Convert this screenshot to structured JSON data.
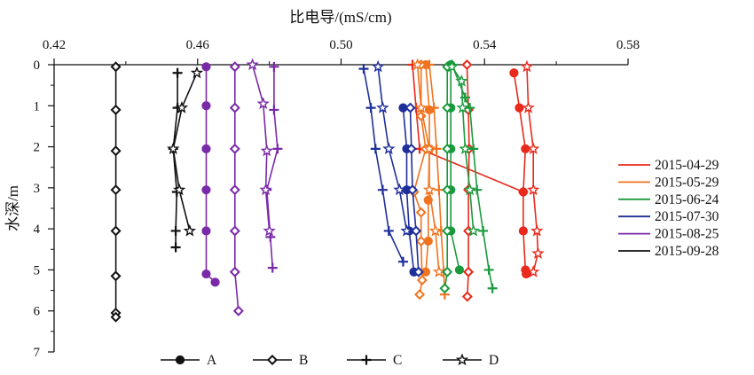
{
  "chart_data": {
    "type": "scatter",
    "xlabel": "比电导/(mS/cm)",
    "ylabel": "水深/m",
    "xlim": [
      0.42,
      0.58
    ],
    "ylim": [
      0,
      7
    ],
    "x_axis_position": "top",
    "y_axis_inverted": true,
    "x_ticks": [
      "0.42",
      "0.46",
      "0.50",
      "0.54",
      "0.58"
    ],
    "y_ticks": [
      "0",
      "1",
      "2",
      "3",
      "4",
      "5",
      "6",
      "7"
    ],
    "grid": false,
    "date_legend": {
      "placement": "right",
      "entries": [
        {
          "name": "2015-04-29",
          "color": "#e8291c"
        },
        {
          "name": "2015-05-29",
          "color": "#f0741f"
        },
        {
          "name": "2015-06-24",
          "color": "#1a9a3c"
        },
        {
          "name": "2015-07-30",
          "color": "#1f2f9a"
        },
        {
          "name": "2015-08-25",
          "color": "#7a2aa8"
        },
        {
          "name": "2015-09-28",
          "color": "#111111"
        }
      ]
    },
    "marker_legend": {
      "placement": "bottom",
      "entries": [
        {
          "name": "A",
          "marker": "circle"
        },
        {
          "name": "B",
          "marker": "diamond"
        },
        {
          "name": "C",
          "marker": "plus"
        },
        {
          "name": "D",
          "marker": "star"
        }
      ]
    },
    "series": [
      {
        "date": "2015-04-29",
        "site": "A",
        "color": "#e8291c",
        "marker": "circle",
        "points": [
          [
            0.5482,
            0.2
          ],
          [
            0.5497,
            1.05
          ],
          [
            0.5514,
            2.05
          ],
          [
            0.5508,
            3.1
          ],
          [
            0.5508,
            4.05
          ],
          [
            0.5514,
            5.0
          ],
          [
            0.5516,
            5.1
          ]
        ]
      },
      {
        "date": "2015-04-29",
        "site": "B",
        "color": "#e8291c",
        "marker": "diamond",
        "points": [
          [
            0.5351,
            0.0
          ],
          [
            0.5355,
            1.1
          ],
          [
            0.5357,
            2.05
          ],
          [
            0.5355,
            3.05
          ],
          [
            0.5355,
            4.05
          ],
          [
            0.5355,
            5.05
          ],
          [
            0.5352,
            5.65
          ]
        ]
      },
      {
        "date": "2015-04-29",
        "site": "C",
        "color": "#e8291c",
        "marker": "plus",
        "points": [
          [
            0.5199,
            0.0
          ],
          [
            0.5209,
            1.05
          ],
          [
            0.5219,
            2.05
          ],
          [
            0.5508,
            3.1
          ]
        ]
      },
      {
        "date": "2015-04-29",
        "site": "D",
        "color": "#e8291c",
        "marker": "star",
        "points": [
          [
            0.5518,
            0.05
          ],
          [
            0.5522,
            1.05
          ],
          [
            0.5536,
            2.05
          ],
          [
            0.5536,
            3.05
          ],
          [
            0.5546,
            4.05
          ],
          [
            0.5549,
            4.6
          ],
          [
            0.5536,
            5.05
          ]
        ]
      },
      {
        "date": "2015-05-29",
        "site": "A",
        "color": "#f0741f",
        "marker": "circle",
        "points": [
          [
            0.5236,
            0.0
          ],
          [
            0.5246,
            1.1
          ],
          [
            0.5246,
            2.05
          ],
          [
            0.5243,
            3.3
          ],
          [
            0.5243,
            4.3
          ],
          [
            0.5236,
            5.05
          ]
        ]
      },
      {
        "date": "2015-05-29",
        "site": "B",
        "color": "#f0741f",
        "marker": "diamond",
        "points": [
          [
            0.5223,
            0.0
          ],
          [
            0.5223,
            1.25
          ],
          [
            0.5236,
            2.05
          ],
          [
            0.5203,
            3.1
          ],
          [
            0.5223,
            3.6
          ],
          [
            0.5223,
            4.3
          ],
          [
            0.5226,
            5.25
          ],
          [
            0.5219,
            5.6
          ]
        ]
      },
      {
        "date": "2015-05-29",
        "site": "C",
        "color": "#f0741f",
        "marker": "plus",
        "points": [
          [
            0.5246,
            0.0
          ],
          [
            0.5259,
            1.05
          ],
          [
            0.5266,
            2.05
          ],
          [
            0.5273,
            3.05
          ],
          [
            0.5279,
            4.05
          ],
          [
            0.5286,
            5.05
          ],
          [
            0.5289,
            5.6
          ]
        ]
      },
      {
        "date": "2015-05-29",
        "site": "D",
        "color": "#f0741f",
        "marker": "star",
        "points": [
          [
            0.5213,
            0.0
          ],
          [
            0.5223,
            1.05
          ],
          [
            0.5246,
            2.05
          ],
          [
            0.5246,
            3.05
          ],
          [
            0.5263,
            4.05
          ],
          [
            0.5273,
            5.05
          ]
        ]
      },
      {
        "date": "2015-06-24",
        "site": "A",
        "color": "#1a9a3c",
        "marker": "circle",
        "points": [
          [
            0.5306,
            0.0
          ],
          [
            0.5306,
            1.05
          ],
          [
            0.5306,
            2.05
          ],
          [
            0.5306,
            3.05
          ],
          [
            0.5306,
            4.05
          ],
          [
            0.533,
            5.0
          ]
        ]
      },
      {
        "date": "2015-06-24",
        "site": "B",
        "color": "#1a9a3c",
        "marker": "diamond",
        "points": [
          [
            0.5296,
            0.05
          ],
          [
            0.5296,
            1.05
          ],
          [
            0.5296,
            2.05
          ],
          [
            0.5296,
            3.05
          ],
          [
            0.5296,
            4.05
          ],
          [
            0.5296,
            5.05
          ],
          [
            0.5289,
            5.45
          ]
        ]
      },
      {
        "date": "2015-06-24",
        "site": "C",
        "color": "#1a9a3c",
        "marker": "plus",
        "points": [
          [
            0.5309,
            0.0
          ],
          [
            0.5346,
            0.8
          ],
          [
            0.5359,
            1.05
          ],
          [
            0.5369,
            2.05
          ],
          [
            0.5379,
            3.05
          ],
          [
            0.5396,
            4.05
          ],
          [
            0.5412,
            5.0
          ],
          [
            0.5422,
            5.45
          ]
        ]
      },
      {
        "date": "2015-06-24",
        "site": "D",
        "color": "#1a9a3c",
        "marker": "star",
        "points": [
          [
            0.5309,
            0.05
          ],
          [
            0.5336,
            0.4
          ],
          [
            0.5339,
            1.05
          ],
          [
            0.5346,
            2.05
          ],
          [
            0.5359,
            3.05
          ],
          [
            0.5369,
            4.05
          ]
        ]
      },
      {
        "date": "2015-07-30",
        "site": "A",
        "color": "#1f2f9a",
        "marker": "circle",
        "points": [
          [
            0.5173,
            1.05
          ],
          [
            0.5183,
            2.05
          ],
          [
            0.5183,
            3.05
          ],
          [
            0.519,
            4.05
          ],
          [
            0.5203,
            5.05
          ]
        ]
      },
      {
        "date": "2015-07-30",
        "site": "B",
        "color": "#1f2f9a",
        "marker": "diamond",
        "points": [
          [
            0.5193,
            1.05
          ],
          [
            0.5196,
            2.05
          ],
          [
            0.5199,
            3.05
          ],
          [
            0.5209,
            4.05
          ],
          [
            0.5216,
            5.05
          ]
        ]
      },
      {
        "date": "2015-07-30",
        "site": "C",
        "color": "#1f2f9a",
        "marker": "plus",
        "points": [
          [
            0.5063,
            0.1
          ],
          [
            0.5083,
            1.05
          ],
          [
            0.5096,
            2.05
          ],
          [
            0.5116,
            3.05
          ],
          [
            0.5133,
            4.05
          ],
          [
            0.5173,
            4.8
          ]
        ]
      },
      {
        "date": "2015-07-30",
        "site": "D",
        "color": "#1f2f9a",
        "marker": "star",
        "points": [
          [
            0.5103,
            0.05
          ],
          [
            0.5116,
            1.05
          ],
          [
            0.5133,
            2.05
          ],
          [
            0.5163,
            3.05
          ],
          [
            0.5183,
            4.05
          ]
        ]
      },
      {
        "date": "2015-08-25",
        "site": "A",
        "color": "#7a2aa8",
        "marker": "circle",
        "points": [
          [
            0.4624,
            0.05
          ],
          [
            0.4624,
            1.0
          ],
          [
            0.4624,
            2.05
          ],
          [
            0.4624,
            3.05
          ],
          [
            0.4624,
            4.05
          ],
          [
            0.4624,
            5.1
          ],
          [
            0.4649,
            5.3
          ]
        ]
      },
      {
        "date": "2015-08-25",
        "site": "B",
        "color": "#7a2aa8",
        "marker": "diamond",
        "points": [
          [
            0.4704,
            0.05
          ],
          [
            0.4704,
            1.05
          ],
          [
            0.4704,
            2.05
          ],
          [
            0.4704,
            3.05
          ],
          [
            0.4704,
            4.05
          ],
          [
            0.4704,
            5.05
          ],
          [
            0.4714,
            6.0
          ]
        ]
      },
      {
        "date": "2015-08-25",
        "site": "C",
        "color": "#7a2aa8",
        "marker": "plus",
        "points": [
          [
            0.4813,
            0.05
          ],
          [
            0.4813,
            1.1
          ],
          [
            0.4823,
            2.05
          ],
          [
            0.4793,
            3.05
          ],
          [
            0.4803,
            4.2
          ],
          [
            0.4809,
            4.95
          ]
        ]
      },
      {
        "date": "2015-08-25",
        "site": "D",
        "color": "#7a2aa8",
        "marker": "star",
        "points": [
          [
            0.4753,
            0.0
          ],
          [
            0.4783,
            0.95
          ],
          [
            0.4793,
            2.1
          ],
          [
            0.479,
            3.05
          ],
          [
            0.48,
            4.05
          ]
        ]
      },
      {
        "date": "2015-09-28",
        "site": "B",
        "color": "#111111",
        "marker": "diamond",
        "points": [
          [
            0.4372,
            0.05
          ],
          [
            0.4372,
            1.1
          ],
          [
            0.4372,
            2.1
          ],
          [
            0.4372,
            3.05
          ],
          [
            0.4372,
            4.05
          ],
          [
            0.4372,
            5.15
          ],
          [
            0.4372,
            6.05
          ],
          [
            0.4372,
            6.15
          ]
        ]
      },
      {
        "date": "2015-09-28",
        "site": "C",
        "color": "#111111",
        "marker": "plus",
        "points": [
          [
            0.4544,
            0.2
          ],
          [
            0.4544,
            1.05
          ],
          [
            0.4532,
            2.05
          ],
          [
            0.4542,
            3.1
          ],
          [
            0.4539,
            4.05
          ],
          [
            0.4539,
            4.45
          ]
        ]
      },
      {
        "date": "2015-09-28",
        "site": "D",
        "color": "#111111",
        "marker": "star",
        "points": [
          [
            0.4598,
            0.2
          ],
          [
            0.4556,
            1.05
          ],
          [
            0.4532,
            2.05
          ],
          [
            0.4549,
            3.05
          ],
          [
            0.4578,
            4.05
          ]
        ]
      }
    ]
  }
}
